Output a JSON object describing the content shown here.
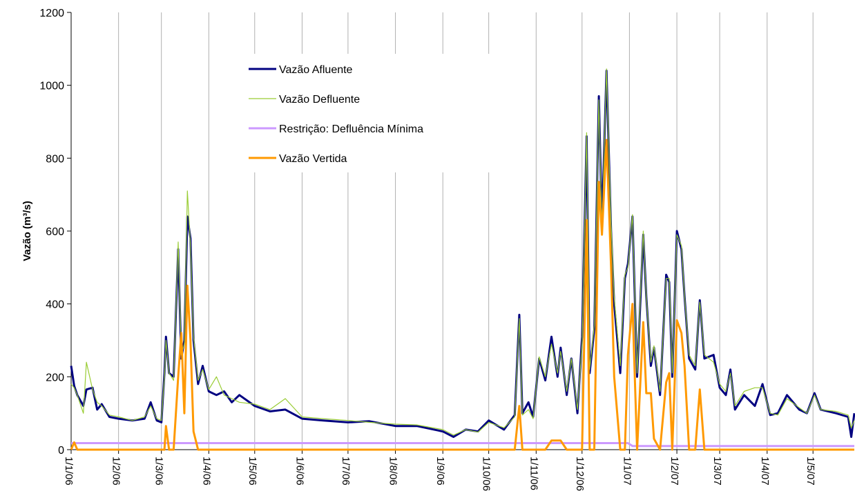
{
  "chart_data": {
    "type": "line",
    "y_label": "Vazão (m³/s)",
    "x": [
      "1/1/06",
      "3/1/06",
      "5/1/06",
      "9/1/06",
      "11/1/06",
      "15/1/06",
      "18/1/06",
      "21/1/06",
      "26/1/06",
      "1/2/06",
      "10/2/06",
      "18/2/06",
      "22/2/06",
      "26/2/06",
      "1/3/06",
      "3/3/06",
      "4/3/06",
      "6/3/06",
      "9/3/06",
      "12/3/06",
      "14/3/06",
      "16/3/06",
      "18/3/06",
      "20/3/06",
      "22/3/06",
      "25/3/06",
      "28/3/06",
      "1/4/06",
      "6/4/06",
      "11/4/06",
      "16/4/06",
      "21/4/06",
      "1/5/06",
      "11/5/06",
      "21/5/06",
      "1/6/06",
      "15/6/06",
      "1/7/06",
      "15/7/06",
      "1/8/06",
      "15/8/06",
      "1/9/06",
      "8/9/06",
      "16/9/06",
      "24/9/06",
      "1/10/06",
      "11/10/06",
      "18/10/06",
      "21/10/06",
      "23/10/06",
      "27/10/06",
      "30/10/06",
      "3/11/06",
      "7/11/06",
      "11/11/06",
      "15/11/06",
      "17/11/06",
      "21/11/06",
      "24/11/06",
      "28/11/06",
      "1/12/06",
      "4/12/06",
      "6/12/06",
      "9/12/06",
      "12/12/06",
      "14/12/06",
      "17/12/06",
      "20/12/06",
      "22/12/06",
      "26/12/06",
      "29/12/06",
      "31/12/06",
      "3/1/07",
      "6/1/07",
      "10/1/07",
      "12/1/07",
      "15/1/07",
      "17/1/07",
      "21/1/07",
      "25/1/07",
      "27/1/07",
      "29/1/07",
      "1/2/07",
      "4/2/07",
      "6/2/07",
      "9/2/07",
      "13/2/07",
      "16/2/07",
      "19/2/07",
      "25/2/07",
      "1/3/07",
      "5/3/07",
      "8/3/07",
      "11/3/07",
      "17/3/07",
      "24/3/07",
      "29/3/07",
      "3/4/07",
      "8/4/07",
      "14/4/07",
      "22/4/07",
      "27/4/07",
      "2/5/07",
      "6/5/07",
      "16/5/07",
      "24/5/07",
      "26/5/07",
      "28/5/07"
    ],
    "series": [
      {
        "name": "Vazão Afluente",
        "color": "#000080",
        "width": 3,
        "values": [
          230,
          175,
          150,
          120,
          165,
          170,
          110,
          125,
          90,
          85,
          80,
          85,
          130,
          80,
          75,
          210,
          310,
          210,
          200,
          550,
          250,
          300,
          640,
          580,
          300,
          180,
          230,
          160,
          150,
          160,
          130,
          150,
          120,
          105,
          110,
          85,
          80,
          75,
          78,
          65,
          65,
          50,
          35,
          55,
          50,
          80,
          55,
          95,
          370,
          100,
          130,
          90,
          250,
          190,
          310,
          200,
          280,
          150,
          250,
          100,
          310,
          860,
          210,
          330,
          970,
          620,
          1040,
          600,
          400,
          210,
          470,
          510,
          640,
          200,
          590,
          420,
          230,
          280,
          150,
          480,
          460,
          200,
          600,
          550,
          420,
          250,
          220,
          410,
          250,
          260,
          170,
          150,
          220,
          110,
          150,
          120,
          180,
          95,
          100,
          150,
          110,
          100,
          155,
          110,
          100,
          90,
          35,
          100
        ]
      },
      {
        "name": "Vazão Defluente",
        "color": "#99cc33",
        "width": 1.2,
        "values": [
          180,
          170,
          150,
          100,
          240,
          165,
          130,
          120,
          95,
          90,
          80,
          90,
          120,
          85,
          80,
          200,
          300,
          210,
          190,
          570,
          260,
          290,
          710,
          560,
          310,
          190,
          220,
          165,
          200,
          150,
          140,
          130,
          125,
          110,
          140,
          90,
          85,
          80,
          75,
          70,
          68,
          55,
          40,
          55,
          48,
          75,
          60,
          90,
          360,
          95,
          110,
          85,
          255,
          200,
          290,
          210,
          270,
          160,
          250,
          110,
          290,
          870,
          220,
          340,
          960,
          600,
          1045,
          620,
          420,
          230,
          480,
          500,
          645,
          210,
          600,
          420,
          240,
          285,
          160,
          470,
          470,
          210,
          590,
          560,
          420,
          260,
          230,
          405,
          260,
          240,
          180,
          160,
          210,
          120,
          160,
          170,
          170,
          100,
          95,
          140,
          115,
          100,
          150,
          110,
          105,
          95,
          60,
          80
        ]
      },
      {
        "name": "Restrição: Defluência Mínima",
        "color": "#cc99ff",
        "width": 3,
        "values": [
          18,
          18,
          18,
          18,
          18,
          18,
          18,
          18,
          18,
          18,
          18,
          18,
          18,
          18,
          18,
          18,
          18,
          18,
          18,
          18,
          18,
          18,
          18,
          18,
          18,
          18,
          18,
          18,
          18,
          18,
          18,
          18,
          18,
          18,
          18,
          18,
          18,
          18,
          18,
          18,
          18,
          18,
          18,
          18,
          18,
          18,
          18,
          18,
          18,
          18,
          18,
          18,
          18,
          18,
          18,
          18,
          18,
          18,
          18,
          18,
          18,
          18,
          18,
          18,
          18,
          18,
          18,
          18,
          18,
          18,
          18,
          18,
          10,
          10,
          10,
          10,
          10,
          10,
          10,
          10,
          10,
          10,
          10,
          10,
          10,
          10,
          10,
          10,
          10,
          10,
          10,
          10,
          10,
          10,
          10,
          10,
          10,
          10,
          10,
          10,
          10,
          10,
          10,
          10,
          10,
          10,
          10,
          10
        ]
      },
      {
        "name": "Vazão Vertida",
        "color": "#ff9900",
        "width": 3,
        "values": [
          0,
          20,
          0,
          0,
          0,
          0,
          0,
          0,
          0,
          0,
          0,
          0,
          0,
          0,
          0,
          0,
          65,
          0,
          0,
          200,
          320,
          100,
          450,
          300,
          50,
          0,
          0,
          0,
          0,
          0,
          0,
          0,
          0,
          0,
          0,
          0,
          0,
          0,
          0,
          0,
          0,
          0,
          0,
          0,
          0,
          0,
          0,
          0,
          120,
          0,
          0,
          0,
          0,
          0,
          25,
          25,
          25,
          0,
          0,
          0,
          0,
          630,
          0,
          0,
          735,
          590,
          850,
          500,
          200,
          0,
          0,
          260,
          400,
          0,
          350,
          155,
          155,
          30,
          0,
          185,
          210,
          0,
          355,
          320,
          230,
          0,
          0,
          165,
          0,
          0,
          0,
          0,
          0,
          0,
          0,
          0,
          0,
          0,
          0,
          0,
          0,
          0,
          0,
          0,
          0,
          0,
          0,
          0
        ]
      }
    ],
    "xlim": [
      "1/1/06",
      "28/5/07"
    ],
    "xticks": [
      "1/1/06",
      "1/2/06",
      "1/3/06",
      "1/4/06",
      "1/5/06",
      "1/6/06",
      "1/7/06",
      "1/8/06",
      "1/9/06",
      "1/10/06",
      "1/11/06",
      "1/12/06",
      "1/1/07",
      "1/2/07",
      "1/3/07",
      "1/4/07",
      "1/5/07"
    ],
    "ylim": [
      0,
      1200
    ],
    "yticks": [
      0,
      200,
      400,
      600,
      800,
      1000,
      1200
    ],
    "grid": "x"
  }
}
